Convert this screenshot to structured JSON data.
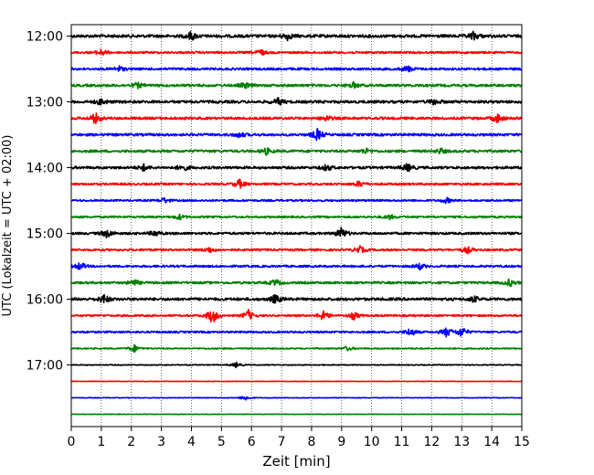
{
  "chart_data": {
    "type": "line",
    "title": "",
    "xlabel": "Zeit  [min]",
    "ylabel": "UTC (Lokalzeit = UTC + 02:00)",
    "xlim": [
      0,
      15
    ],
    "x_ticks": [
      "0",
      "1",
      "2",
      "3",
      "4",
      "5",
      "6",
      "7",
      "8",
      "9",
      "10",
      "11",
      "12",
      "13",
      "14",
      "15"
    ],
    "y_ticks": [
      "12:00",
      "13:00",
      "14:00",
      "15:00",
      "16:00",
      "17:00"
    ],
    "grid": "vertical dotted",
    "colors": [
      "#000000",
      "#ff0000",
      "#0000ff",
      "#008000"
    ],
    "series_start_times": [
      "12:00",
      "12:15",
      "12:30",
      "12:45",
      "13:00",
      "13:15",
      "13:30",
      "13:45",
      "14:00",
      "14:15",
      "14:30",
      "14:45",
      "15:00",
      "15:15",
      "15:30",
      "15:45",
      "16:00",
      "16:15",
      "16:30",
      "16:45",
      "17:00",
      "17:15",
      "17:30",
      "17:45"
    ],
    "series_noise_levels": [
      0.7,
      0.5,
      0.55,
      0.6,
      0.65,
      0.6,
      0.6,
      0.6,
      0.6,
      0.5,
      0.45,
      0.45,
      0.55,
      0.5,
      0.5,
      0.55,
      0.65,
      0.45,
      0.45,
      0.3,
      0.2,
      0.12,
      0.15,
      0.12
    ],
    "series_events": [
      [
        [
          4.0,
          1.0
        ],
        [
          7.2,
          0.8
        ],
        [
          13.4,
          0.9
        ]
      ],
      [
        [
          1.0,
          0.7
        ],
        [
          6.3,
          0.7
        ]
      ],
      [
        [
          1.6,
          0.6
        ],
        [
          11.2,
          0.7
        ]
      ],
      [
        [
          2.2,
          0.6
        ],
        [
          5.8,
          0.6
        ],
        [
          9.4,
          0.6
        ]
      ],
      [
        [
          1.0,
          0.7
        ],
        [
          6.9,
          0.8
        ],
        [
          12.1,
          0.7
        ]
      ],
      [
        [
          0.8,
          1.2
        ],
        [
          8.5,
          0.6
        ],
        [
          14.2,
          1.0
        ]
      ],
      [
        [
          8.2,
          1.3
        ],
        [
          5.6,
          0.6
        ]
      ],
      [
        [
          6.5,
          0.7
        ],
        [
          9.8,
          0.6
        ],
        [
          12.3,
          0.6
        ]
      ],
      [
        [
          2.4,
          0.7
        ],
        [
          3.7,
          0.8
        ],
        [
          8.5,
          0.7
        ],
        [
          11.2,
          0.9
        ]
      ],
      [
        [
          5.6,
          1.0
        ],
        [
          9.6,
          0.7
        ]
      ],
      [
        [
          3.1,
          0.6
        ],
        [
          12.5,
          0.6
        ]
      ],
      [
        [
          3.6,
          0.6
        ],
        [
          10.6,
          0.5
        ]
      ],
      [
        [
          1.2,
          1.0
        ],
        [
          9.0,
          1.3
        ],
        [
          2.8,
          0.7
        ]
      ],
      [
        [
          9.6,
          0.8
        ],
        [
          4.6,
          0.6
        ],
        [
          13.2,
          0.7
        ]
      ],
      [
        [
          0.3,
          0.9
        ],
        [
          11.6,
          0.7
        ]
      ],
      [
        [
          2.1,
          0.7
        ],
        [
          6.8,
          0.7
        ],
        [
          14.6,
          0.8
        ]
      ],
      [
        [
          1.1,
          1.0
        ],
        [
          6.8,
          1.0
        ],
        [
          13.4,
          0.7
        ]
      ],
      [
        [
          4.7,
          1.9
        ],
        [
          5.9,
          1.2
        ],
        [
          8.4,
          1.2
        ],
        [
          9.4,
          0.9
        ]
      ],
      [
        [
          11.3,
          1.0
        ],
        [
          12.5,
          1.1
        ],
        [
          13.0,
          1.2
        ]
      ],
      [
        [
          2.1,
          0.8
        ],
        [
          9.2,
          0.5
        ]
      ],
      [
        [
          5.5,
          0.6
        ]
      ],
      [],
      [
        [
          5.8,
          0.6
        ]
      ],
      []
    ]
  }
}
